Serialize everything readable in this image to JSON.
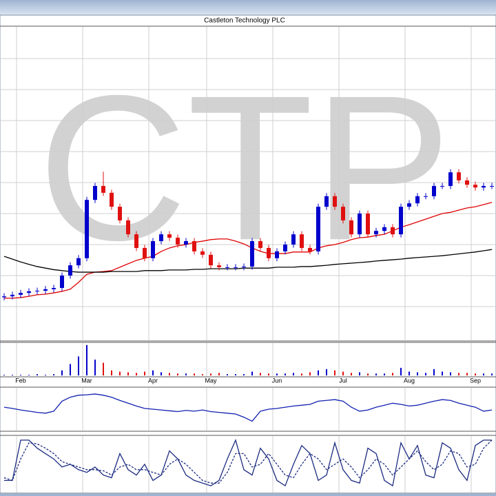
{
  "chart_data": {
    "type": "candlestick",
    "title": "Castleton Technology PLC",
    "watermark": "CTP",
    "categories": [
      null,
      null,
      "Feb",
      null,
      null,
      null,
      null,
      null,
      null,
      null,
      "Mar",
      null,
      null,
      null,
      null,
      null,
      null,
      null,
      "Apr",
      null,
      null,
      null,
      null,
      null,
      null,
      "May",
      null,
      null,
      null,
      null,
      null,
      null,
      null,
      "Jun",
      null,
      null,
      null,
      null,
      null,
      null,
      null,
      "Jul",
      null,
      null,
      null,
      null,
      null,
      null,
      null,
      "Aug",
      null,
      null,
      null,
      null,
      null,
      null,
      null,
      "Sep",
      null,
      null
    ],
    "open": [
      13,
      13.3,
      13.8,
      14.4,
      14.9,
      15.1,
      15.6,
      16,
      20,
      23.3,
      25.6,
      44.4,
      48.9,
      46.7,
      42.2,
      37.8,
      33.3,
      28.9,
      25.6,
      31.1,
      33.3,
      32.2,
      30,
      31.1,
      27.8,
      26.7,
      23.3,
      22.7,
      22.7,
      22.7,
      22.9,
      31.1,
      28.9,
      25.6,
      27.8,
      30,
      33.3,
      28.9,
      27.8,
      42.2,
      45.6,
      42.2,
      37.8,
      33.3,
      40,
      33.3,
      34.4,
      35.6,
      33.3,
      42.2,
      43.3,
      45.6,
      45.6,
      48.9,
      48.9,
      53.3,
      50.7,
      49.3,
      48.4,
      48.9
    ],
    "high": [
      14.3,
      14.8,
      15.4,
      15.9,
      16.1,
      16.6,
      17,
      21,
      24.3,
      26.6,
      45.4,
      49.9,
      53.5,
      47.7,
      43.2,
      38.8,
      34.3,
      29.9,
      32.1,
      34.3,
      34.3,
      33.2,
      32.1,
      32.1,
      28.8,
      27.7,
      24.3,
      23.7,
      23.7,
      23.9,
      32.1,
      32.1,
      29.9,
      28.8,
      31,
      34.3,
      34.3,
      29.9,
      43.2,
      46.6,
      46.6,
      43.2,
      38.8,
      41,
      41,
      35.4,
      36.6,
      36.6,
      43.2,
      44.3,
      46.6,
      46.6,
      49.9,
      49.9,
      54.3,
      54.3,
      51.7,
      50.3,
      49.9,
      49.9
    ],
    "low": [
      12,
      12.3,
      12.8,
      13.4,
      13.9,
      14.1,
      14.6,
      15,
      19,
      22.3,
      24.6,
      43.4,
      45.7,
      41.2,
      36.8,
      32.3,
      27.9,
      24.6,
      24.6,
      30.1,
      31.2,
      29,
      29,
      26.8,
      25.7,
      22.3,
      21.7,
      21.7,
      21.7,
      21.7,
      21.9,
      27.9,
      24.6,
      24.6,
      26.8,
      29,
      27.9,
      26.8,
      26.8,
      41.2,
      41.2,
      36.8,
      32.3,
      32.3,
      32.3,
      32.3,
      33.4,
      32.3,
      32.3,
      41.2,
      42.3,
      44.6,
      44.6,
      47.9,
      47.9,
      49.7,
      48.3,
      47.4,
      47.4,
      47.9
    ],
    "close": [
      13.3,
      13.8,
      14.4,
      14.9,
      15.1,
      15.6,
      16,
      20,
      23.3,
      25.6,
      44.4,
      48.9,
      46.7,
      42.2,
      37.8,
      33.3,
      28.9,
      25.6,
      31.1,
      33.3,
      32.2,
      30,
      31.1,
      27.8,
      26.7,
      23.3,
      22.7,
      22.7,
      22.7,
      22.9,
      31.1,
      28.9,
      25.6,
      27.8,
      30,
      33.3,
      28.9,
      27.8,
      42.2,
      45.6,
      42.2,
      37.8,
      33.3,
      40,
      33.3,
      34.4,
      35.6,
      33.3,
      42.2,
      43.3,
      45.6,
      45.6,
      48.9,
      48.9,
      53.3,
      50.7,
      49.3,
      48.4,
      48.9,
      48.9
    ],
    "up_color": "#0000cc",
    "down_color": "#e01010",
    "ylim": [
      0,
      100
    ],
    "yticks": [
      10,
      20,
      30,
      40,
      50,
      60,
      70,
      80,
      90
    ],
    "ytick_labels": false,
    "grid": true,
    "series": [
      {
        "color": "#e00000",
        "values": [
          12.7,
          12.7,
          12.9,
          13.3,
          13.8,
          14,
          14.4,
          14.9,
          15.6,
          17.8,
          20.4,
          21.1,
          21.3,
          21.6,
          22.7,
          23.8,
          24.9,
          25.6,
          26.2,
          27.8,
          28.9,
          29.6,
          30,
          30.7,
          31.1,
          31.6,
          31.8,
          31.8,
          31.1,
          30.2,
          28.9,
          27.8,
          27.1,
          27.1,
          27.1,
          27.6,
          27.6,
          27.6,
          28.9,
          29.6,
          30,
          30.7,
          31.6,
          32.2,
          32.4,
          32.9,
          33.3,
          34.4,
          35.6,
          36.4,
          37.3,
          38.2,
          39.1,
          40,
          40.4,
          41.1,
          41.8,
          42.2,
          42.9,
          43.6
        ]
      },
      {
        "color": "#000000",
        "values": [
          26.2,
          25.3,
          24.4,
          23.6,
          22.9,
          22.4,
          21.9,
          21.6,
          21.3,
          21.1,
          21.1,
          21.1,
          21.1,
          21.3,
          21.3,
          21.3,
          21.3,
          21.6,
          21.6,
          21.6,
          21.8,
          21.8,
          21.8,
          22,
          22,
          22.2,
          22.2,
          22.2,
          22.2,
          22.4,
          22.4,
          22.4,
          22.4,
          22.7,
          22.7,
          22.7,
          22.9,
          22.9,
          23.1,
          23.3,
          23.6,
          23.8,
          24,
          24.2,
          24.4,
          24.7,
          24.9,
          25.1,
          25.3,
          25.6,
          25.8,
          26,
          26.2,
          26.4,
          26.7,
          27,
          27.3,
          27.6,
          28,
          28.4
        ]
      }
    ],
    "volume": {
      "ylim": [
        0,
        50
      ],
      "values": [
        1,
        1,
        1,
        1,
        2,
        1,
        2,
        8,
        18,
        30,
        48,
        25,
        20,
        8,
        6,
        5,
        4,
        6,
        8,
        5,
        4,
        3,
        3,
        3,
        2,
        3,
        4,
        2,
        2,
        2,
        6,
        4,
        3,
        3,
        3,
        4,
        3,
        5,
        8,
        10,
        8,
        6,
        4,
        5,
        3,
        3,
        3,
        4,
        12,
        6,
        5,
        4,
        10,
        6,
        5,
        4,
        4,
        3,
        3,
        3
      ]
    },
    "indicators": [
      {
        "ylim": [
          0,
          100
        ],
        "series": [
          {
            "color": "#1020b0",
            "dashed": false,
            "values": [
              55,
              52,
              48,
              45,
              42,
              40,
              45,
              70,
              80,
              85,
              86,
              88,
              85,
              80,
              72,
              65,
              58,
              52,
              50,
              48,
              46,
              44,
              47,
              45,
              48,
              44,
              42,
              40,
              38,
              30,
              20,
              45,
              50,
              52,
              55,
              58,
              60,
              62,
              70,
              72,
              74,
              70,
              55,
              45,
              48,
              55,
              60,
              65,
              62,
              58,
              60,
              65,
              70,
              74,
              72,
              65,
              60,
              55,
              45,
              48
            ]
          }
        ]
      },
      {
        "ylim": [
          0,
          100
        ],
        "series": [
          {
            "color": "#1a2a80",
            "dashed": false,
            "values": [
              20,
              20,
              95,
              95,
              80,
              70,
              60,
              45,
              50,
              40,
              35,
              45,
              30,
              25,
              70,
              40,
              30,
              50,
              20,
              30,
              75,
              60,
              30,
              20,
              15,
              10,
              20,
              60,
              95,
              40,
              30,
              80,
              60,
              20,
              10,
              50,
              85,
              70,
              20,
              30,
              90,
              40,
              20,
              15,
              80,
              70,
              20,
              10,
              90,
              60,
              85,
              30,
              25,
              90,
              80,
              40,
              20,
              85,
              95,
              95
            ]
          },
          {
            "color": "#1a2a80",
            "dashed": true,
            "values": [
              25,
              20,
              60,
              90,
              88,
              80,
              70,
              55,
              50,
              45,
              40,
              40,
              38,
              30,
              45,
              50,
              40,
              40,
              35,
              30,
              50,
              60,
              50,
              35,
              20,
              15,
              15,
              35,
              70,
              70,
              45,
              50,
              70,
              50,
              30,
              25,
              50,
              70,
              60,
              40,
              50,
              60,
              45,
              25,
              40,
              60,
              50,
              30,
              45,
              60,
              75,
              55,
              40,
              50,
              75,
              70,
              45,
              50,
              80,
              95
            ]
          }
        ]
      }
    ]
  }
}
